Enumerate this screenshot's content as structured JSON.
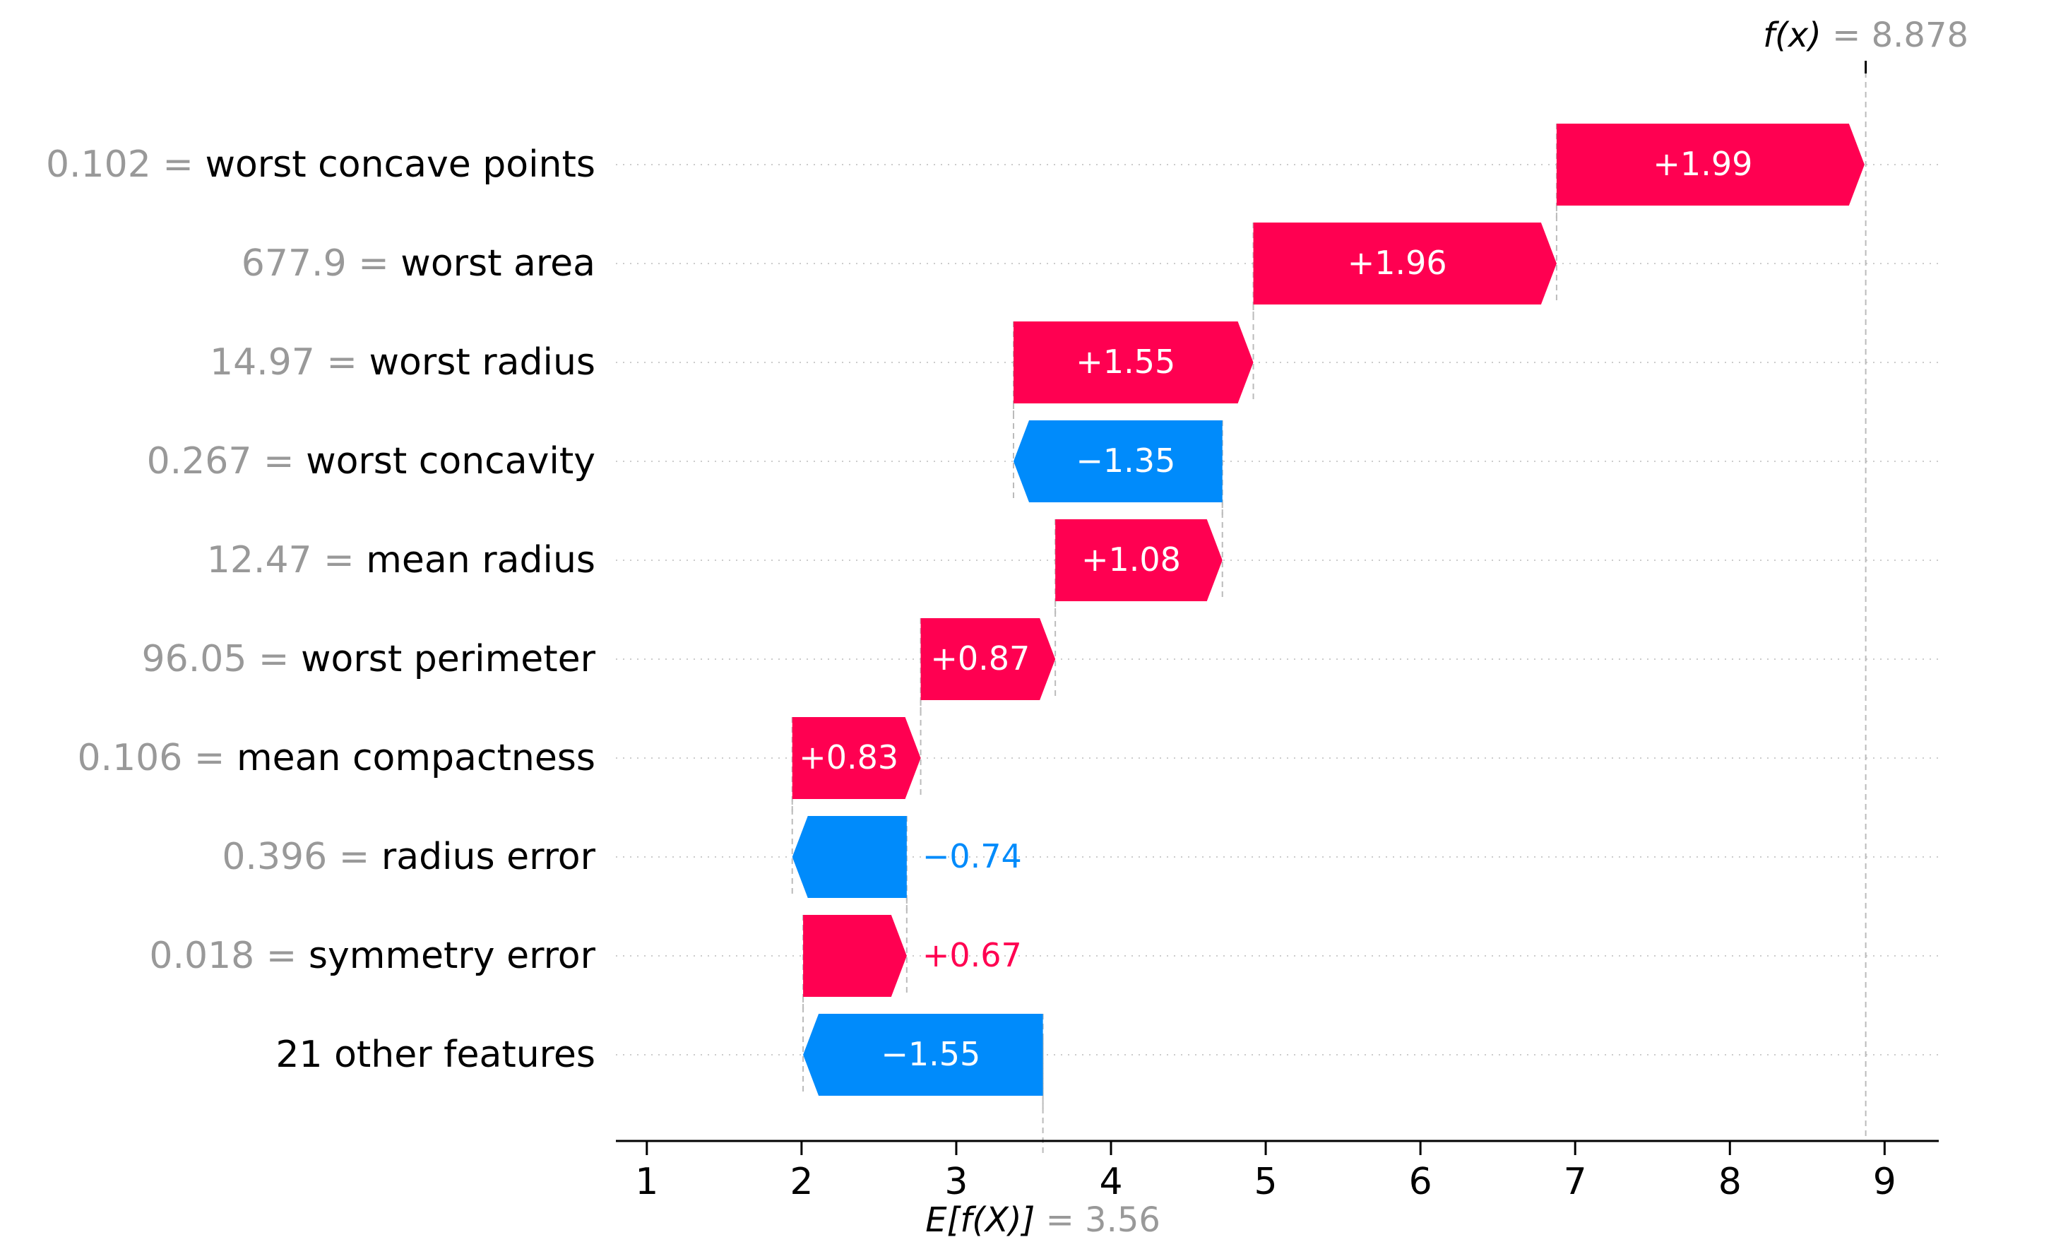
{
  "chart_data": {
    "type": "bar",
    "subtype": "waterfall",
    "base_value": 3.56,
    "base_label_text": "E[f(X)]",
    "base_value_text": "= 3.56",
    "output_value": 8.878,
    "output_label_text": "f(x)",
    "output_value_text": "= 8.878",
    "xlim": [
      0.8,
      9.35
    ],
    "xticks": [
      "1",
      "2",
      "3",
      "4",
      "5",
      "6",
      "7",
      "8",
      "9"
    ],
    "colors": {
      "positive": "#ff0051",
      "negative": "#008bfb",
      "muted": "#999999"
    },
    "features": [
      {
        "value_text": "0.102 =",
        "name": "worst concave points",
        "contribution": 1.99,
        "label": "+1.99"
      },
      {
        "value_text": "677.9 =",
        "name": "worst area",
        "contribution": 1.96,
        "label": "+1.96"
      },
      {
        "value_text": "14.97 =",
        "name": "worst radius",
        "contribution": 1.55,
        "label": "+1.55"
      },
      {
        "value_text": "0.267 =",
        "name": "worst concavity",
        "contribution": -1.35,
        "label": "−1.35"
      },
      {
        "value_text": "12.47 =",
        "name": "mean radius",
        "contribution": 1.08,
        "label": "+1.08"
      },
      {
        "value_text": "96.05 =",
        "name": "worst perimeter",
        "contribution": 0.87,
        "label": "+0.87"
      },
      {
        "value_text": "0.106 =",
        "name": "mean compactness",
        "contribution": 0.83,
        "label": "+0.83"
      },
      {
        "value_text": "0.396 =",
        "name": "radius error",
        "contribution": -0.74,
        "label": "−0.74"
      },
      {
        "value_text": "0.018 =",
        "name": "symmetry error",
        "contribution": 0.67,
        "label": "+0.67"
      },
      {
        "value_text": "",
        "name": "21 other features",
        "contribution": -1.55,
        "label": "−1.55"
      }
    ]
  }
}
